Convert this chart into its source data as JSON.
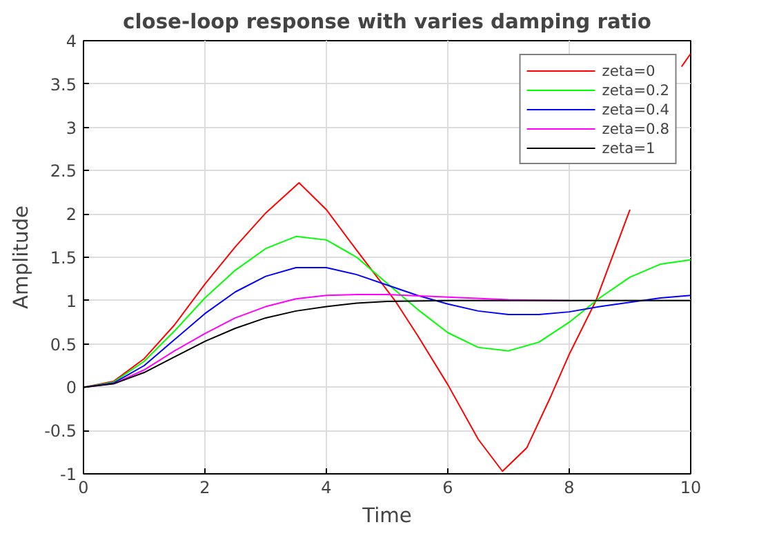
{
  "chart_data": {
    "type": "line",
    "title": "close-loop response with varies damping ratio",
    "xlabel": "Time",
    "ylabel": "Amplitude",
    "xlim": [
      0,
      10
    ],
    "ylim": [
      -1,
      4
    ],
    "xticks": [
      0,
      2,
      4,
      6,
      8,
      10
    ],
    "yticks": [
      -1,
      -0.5,
      0,
      0.5,
      1,
      1.5,
      2,
      2.5,
      3,
      3.5,
      4
    ],
    "grid": true,
    "legend": "top right",
    "line_style": "solid",
    "series": [
      {
        "name": "zeta=0",
        "color": "#ff0000",
        "x": [
          0,
          0.5,
          1,
          1.5,
          2,
          2.5,
          3,
          3.55,
          4,
          4.5,
          5.13,
          5.5,
          6,
          6.5,
          6.9,
          7.3,
          7.7,
          8,
          8.44,
          9,
          9.5,
          9.85,
          10
        ],
        "values": [
          0,
          0.07,
          0.33,
          0.72,
          1.19,
          1.62,
          2.01,
          2.36,
          2.05,
          1.58,
          1.0,
          0.6,
          0.03,
          -0.6,
          -0.97,
          -0.7,
          -0.1,
          0.38,
          1.0,
          2.05,
          null,
          3.7,
          3.85
        ]
      },
      {
        "name": "zeta=0.2",
        "color": "#00ff00",
        "x": [
          0,
          0.5,
          1,
          1.5,
          2,
          2.5,
          3,
          3.5,
          4,
          4.5,
          5,
          5.5,
          6,
          6.5,
          7,
          7.5,
          8,
          8.5,
          9,
          9.5,
          10
        ],
        "values": [
          0,
          0.06,
          0.3,
          0.65,
          1.03,
          1.35,
          1.6,
          1.74,
          1.7,
          1.5,
          1.2,
          0.9,
          0.63,
          0.46,
          0.42,
          0.52,
          0.75,
          1.03,
          1.27,
          1.42,
          1.47
        ]
      },
      {
        "name": "zeta=0.4",
        "color": "#0000ff",
        "x": [
          0,
          0.5,
          1,
          1.5,
          2,
          2.5,
          3,
          3.5,
          4,
          4.5,
          5,
          5.5,
          6,
          6.5,
          7,
          7.5,
          8,
          8.5,
          9,
          9.5,
          10
        ],
        "values": [
          0,
          0.05,
          0.25,
          0.55,
          0.85,
          1.1,
          1.28,
          1.38,
          1.38,
          1.3,
          1.18,
          1.06,
          0.96,
          0.88,
          0.84,
          0.84,
          0.87,
          0.93,
          0.98,
          1.03,
          1.06
        ]
      },
      {
        "name": "zeta=0.8",
        "color": "#ff00ff",
        "x": [
          0,
          0.5,
          1,
          1.5,
          2,
          2.5,
          3,
          3.5,
          4,
          4.5,
          5,
          6,
          7,
          8
        ],
        "values": [
          0,
          0.04,
          0.2,
          0.42,
          0.62,
          0.8,
          0.93,
          1.02,
          1.06,
          1.07,
          1.07,
          1.04,
          1.01,
          1.0
        ]
      },
      {
        "name": "zeta=1",
        "color": "#000000",
        "x": [
          0,
          0.5,
          1,
          1.5,
          2,
          2.5,
          3,
          3.5,
          4,
          4.5,
          5,
          6,
          7,
          8,
          9,
          10
        ],
        "values": [
          0,
          0.04,
          0.17,
          0.35,
          0.53,
          0.68,
          0.8,
          0.88,
          0.93,
          0.97,
          0.99,
          1.0,
          1.0,
          1.0,
          1.0,
          1.0
        ]
      }
    ]
  }
}
